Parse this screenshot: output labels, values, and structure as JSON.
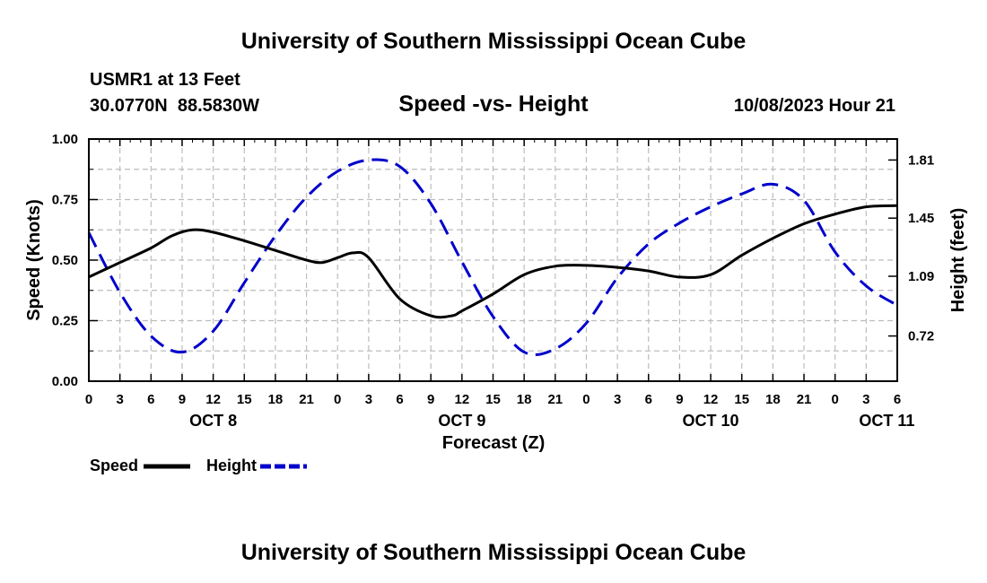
{
  "header": {
    "title": "University of Southern Mississippi Ocean Cube",
    "station": "USMR1 at 13 Feet",
    "coordinates": "30.0770N  88.5830W",
    "subtitle": "Speed -vs- Height",
    "datetime": "10/08/2023 Hour 21"
  },
  "footer": {
    "title": "University of Southern Mississippi Ocean Cube"
  },
  "chart_data": {
    "type": "line",
    "title": "Speed -vs- Height",
    "xlabel": "Forecast (Z)",
    "ylabel": "Speed (Knots)",
    "y2label": "Height (feet)",
    "grid": true,
    "legend_position": "bottom-left",
    "x_range_hours": [
      0,
      78
    ],
    "ylim": [
      0,
      1
    ],
    "y2lim": [
      0.44,
      1.94
    ],
    "x_ticks": [
      {
        "hour": 0,
        "label": "0"
      },
      {
        "hour": 3,
        "label": "3"
      },
      {
        "hour": 6,
        "label": "6"
      },
      {
        "hour": 9,
        "label": "9"
      },
      {
        "hour": 12,
        "label": "12"
      },
      {
        "hour": 15,
        "label": "15"
      },
      {
        "hour": 18,
        "label": "18"
      },
      {
        "hour": 21,
        "label": "21"
      },
      {
        "hour": 24,
        "label": "0"
      },
      {
        "hour": 27,
        "label": "3"
      },
      {
        "hour": 30,
        "label": "6"
      },
      {
        "hour": 33,
        "label": "9"
      },
      {
        "hour": 36,
        "label": "12"
      },
      {
        "hour": 39,
        "label": "15"
      },
      {
        "hour": 42,
        "label": "18"
      },
      {
        "hour": 45,
        "label": "21"
      },
      {
        "hour": 48,
        "label": "0"
      },
      {
        "hour": 51,
        "label": "3"
      },
      {
        "hour": 54,
        "label": "6"
      },
      {
        "hour": 57,
        "label": "9"
      },
      {
        "hour": 60,
        "label": "12"
      },
      {
        "hour": 63,
        "label": "15"
      },
      {
        "hour": 66,
        "label": "18"
      },
      {
        "hour": 69,
        "label": "21"
      },
      {
        "hour": 72,
        "label": "0"
      },
      {
        "hour": 75,
        "label": "3"
      },
      {
        "hour": 78,
        "label": "6"
      }
    ],
    "date_labels": [
      {
        "hour": 12,
        "label": "OCT 8"
      },
      {
        "hour": 36,
        "label": "OCT 9"
      },
      {
        "hour": 60,
        "label": "OCT 10"
      },
      {
        "hour": 77,
        "label": "OCT 11"
      }
    ],
    "y_ticks": [
      "0.00",
      "0.25",
      "0.50",
      "0.75",
      "1.00"
    ],
    "y_tick_values": [
      0,
      0.25,
      0.5,
      0.75,
      1.0
    ],
    "y2_ticks": [
      "0.72",
      "1.09",
      "1.45",
      "1.81"
    ],
    "y2_tick_values": [
      0.72,
      1.09,
      1.45,
      1.81
    ],
    "series": [
      {
        "name": "Speed",
        "axis": "left",
        "color": "#000000",
        "dash": "solid",
        "x": [
          0,
          3,
          6,
          8,
          10,
          12,
          15,
          18,
          21,
          22.5,
          24,
          25.5,
          27,
          30,
          33,
          35,
          36,
          39,
          42,
          45,
          48,
          51,
          54,
          57,
          60,
          63,
          66,
          69,
          72,
          75,
          78
        ],
        "values": [
          0.43,
          0.49,
          0.55,
          0.6,
          0.625,
          0.615,
          0.58,
          0.54,
          0.5,
          0.49,
          0.51,
          0.53,
          0.51,
          0.34,
          0.27,
          0.27,
          0.29,
          0.36,
          0.44,
          0.475,
          0.478,
          0.47,
          0.455,
          0.43,
          0.44,
          0.52,
          0.59,
          0.65,
          0.69,
          0.72,
          0.725
        ]
      },
      {
        "name": "Height",
        "axis": "right",
        "color": "#0000cc",
        "dash": "dashed",
        "x": [
          0,
          3,
          6,
          9,
          12,
          15,
          18,
          21,
          24,
          27,
          30,
          33,
          36,
          39,
          42,
          45,
          48,
          51,
          54,
          57,
          60,
          63,
          66,
          69,
          72,
          75,
          78
        ],
        "values": [
          1.36,
          0.99,
          0.72,
          0.62,
          0.75,
          1.05,
          1.34,
          1.58,
          1.74,
          1.81,
          1.77,
          1.54,
          1.18,
          0.84,
          0.62,
          0.64,
          0.8,
          1.08,
          1.29,
          1.42,
          1.52,
          1.6,
          1.66,
          1.56,
          1.24,
          1.03,
          0.91
        ]
      }
    ]
  }
}
